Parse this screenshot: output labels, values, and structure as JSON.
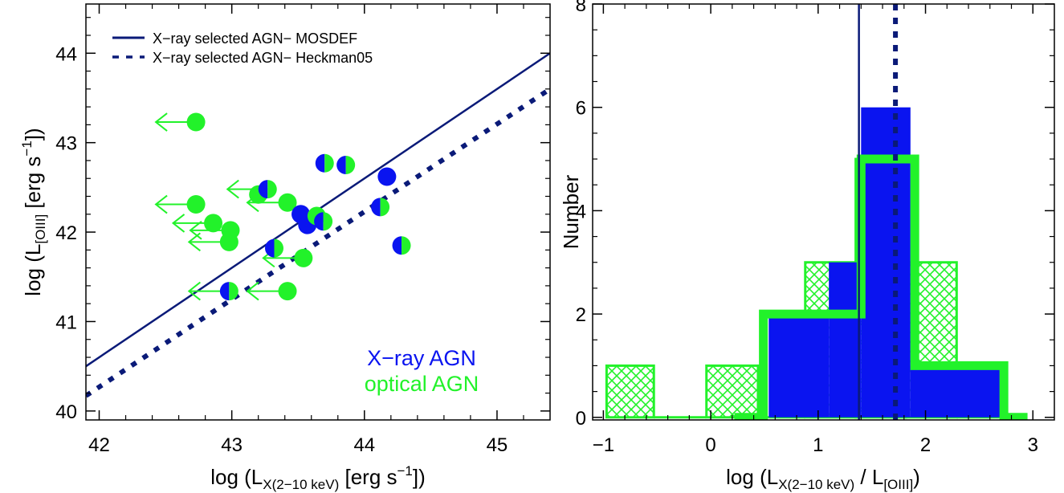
{
  "colors": {
    "navy": "#0a1a78",
    "blue": "#0a14f0",
    "green": "#22f22a",
    "axis": "#000000"
  },
  "chart_data": [
    {
      "type": "scatter",
      "xlabel_main": "log (L",
      "xlabel_sub": "X(2−10 keV)",
      "xlabel_unit": " [erg s",
      "xlabel_sup": "−1",
      "xlabel_end": "])",
      "ylabel_main": "log (L",
      "ylabel_sub": "[OIII]",
      "ylabel_unit": " [erg s",
      "ylabel_sup": "−1",
      "ylabel_end": "])",
      "xlim": [
        41.9,
        45.4
      ],
      "ylim": [
        39.9,
        44.55
      ],
      "xticks": [
        42,
        43,
        44,
        45
      ],
      "yticks": [
        40,
        41,
        42,
        43,
        44
      ],
      "legend": [
        {
          "label": "X−ray selected AGN− MOSDEF",
          "style": "solid",
          "color": "#0a1a78"
        },
        {
          "label": "X−ray selected AGN− Heckman05",
          "style": "dotted",
          "color": "#0a1a78"
        }
      ],
      "annotations": [
        {
          "text": "X−ray AGN",
          "color": "#0a14f0"
        },
        {
          "text": "optical AGN",
          "color": "#22f22a"
        }
      ],
      "lines": [
        {
          "name": "X−ray selected AGN− MOSDEF",
          "style": "solid",
          "x": [
            41.9,
            45.4
          ],
          "y": [
            40.5,
            44.0
          ]
        },
        {
          "name": "X−ray selected AGN− Heckman05",
          "style": "dotted",
          "x": [
            41.9,
            45.4
          ],
          "y": [
            40.17,
            43.6
          ]
        }
      ],
      "points": [
        {
          "x": 42.73,
          "y": 43.23,
          "type": "optical",
          "upper_limit": true
        },
        {
          "x": 42.73,
          "y": 42.31,
          "type": "optical",
          "upper_limit": true
        },
        {
          "x": 42.86,
          "y": 42.1,
          "type": "optical",
          "upper_limit": true
        },
        {
          "x": 42.99,
          "y": 42.02,
          "type": "optical",
          "upper_limit": true
        },
        {
          "x": 42.98,
          "y": 41.89,
          "type": "optical",
          "upper_limit": true
        },
        {
          "x": 42.98,
          "y": 41.34,
          "type": "both",
          "upper_limit": true
        },
        {
          "x": 43.2,
          "y": 42.42,
          "type": "optical",
          "upper_limit": false
        },
        {
          "x": 43.27,
          "y": 42.48,
          "type": "both",
          "upper_limit": true
        },
        {
          "x": 43.32,
          "y": 41.82,
          "type": "both",
          "upper_limit": false
        },
        {
          "x": 43.42,
          "y": 42.33,
          "type": "optical",
          "upper_limit": true
        },
        {
          "x": 43.42,
          "y": 41.34,
          "type": "optical",
          "upper_limit": true
        },
        {
          "x": 43.52,
          "y": 42.2,
          "type": "xray",
          "upper_limit": false
        },
        {
          "x": 43.54,
          "y": 41.71,
          "type": "optical",
          "upper_limit": true
        },
        {
          "x": 43.57,
          "y": 42.08,
          "type": "xray",
          "upper_limit": false
        },
        {
          "x": 43.64,
          "y": 42.18,
          "type": "optical",
          "upper_limit": false
        },
        {
          "x": 43.69,
          "y": 42.12,
          "type": "both",
          "upper_limit": false
        },
        {
          "x": 43.7,
          "y": 42.77,
          "type": "both",
          "upper_limit": false
        },
        {
          "x": 43.86,
          "y": 42.75,
          "type": "both",
          "upper_limit": false
        },
        {
          "x": 44.12,
          "y": 42.28,
          "type": "both",
          "upper_limit": false
        },
        {
          "x": 44.17,
          "y": 42.62,
          "type": "xray",
          "upper_limit": false
        },
        {
          "x": 44.28,
          "y": 41.85,
          "type": "both",
          "upper_limit": false
        }
      ]
    },
    {
      "type": "bar",
      "xlabel_main": "log (L",
      "xlabel_sub": "X(2−10 keV)",
      "xlabel_mid": " / L",
      "xlabel_sub2": "[OIII]",
      "xlabel_end": ")",
      "ylabel": "Number",
      "xlim": [
        -1.1,
        3.2
      ],
      "ylim": [
        -0.05,
        8.0
      ],
      "xticks": [
        -1,
        0,
        1,
        2,
        3
      ],
      "yticks": [
        0,
        2,
        4,
        6,
        8
      ],
      "vlines": [
        {
          "x": 1.38,
          "style": "solid",
          "color": "#0a1a78"
        },
        {
          "x": 1.72,
          "style": "dotted",
          "color": "#0a1a78"
        }
      ],
      "series": [
        {
          "style": "filled",
          "color": "#0a14f0",
          "bins": [
            {
              "x0": 0.54,
              "x1": 1.1,
              "value": 2
            },
            {
              "x0": 1.1,
              "x1": 1.4,
              "value": 3
            },
            {
              "x0": 1.4,
              "x1": 1.86,
              "value": 6
            },
            {
              "x0": 1.86,
              "x1": 2.7,
              "value": 1
            }
          ]
        },
        {
          "style": "hatched",
          "color": "#22f22a",
          "bins": [
            {
              "x0": -0.97,
              "x1": -0.53,
              "value": 1
            },
            {
              "x0": -0.53,
              "x1": -0.04,
              "value": 0
            },
            {
              "x0": -0.04,
              "x1": 0.44,
              "value": 1
            },
            {
              "x0": 0.44,
              "x1": 0.88,
              "value": 0
            },
            {
              "x0": 0.88,
              "x1": 1.35,
              "value": 3
            },
            {
              "x0": 1.35,
              "x1": 1.82,
              "value": 5
            },
            {
              "x0": 1.82,
              "x1": 2.29,
              "value": 3
            },
            {
              "x0": 2.29,
              "x1": 2.9,
              "value": 0
            }
          ]
        },
        {
          "style": "step",
          "color": "#22f22a",
          "steps": [
            {
              "x0": 0.22,
              "x1": 0.49,
              "value": 0
            },
            {
              "x0": 0.49,
              "x1": 1.4,
              "value": 2
            },
            {
              "x0": 1.4,
              "x1": 1.9,
              "value": 5
            },
            {
              "x0": 1.9,
              "x1": 2.73,
              "value": 1
            },
            {
              "x0": 2.73,
              "x1": 2.95,
              "value": 0
            }
          ]
        }
      ]
    }
  ]
}
